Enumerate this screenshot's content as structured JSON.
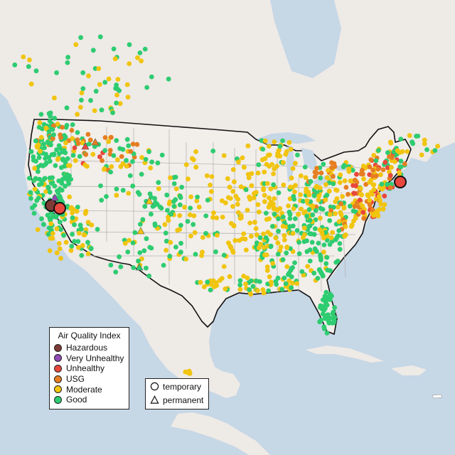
{
  "legend_aqi": {
    "title": "Air Quality Index",
    "items": [
      {
        "label": "Hazardous",
        "color": "#7e3b35"
      },
      {
        "label": "Very Unhealthy",
        "color": "#8f4bb4"
      },
      {
        "label": "Unhealthy",
        "color": "#e8473d"
      },
      {
        "label": "USG",
        "color": "#e67e22"
      },
      {
        "label": "Moderate",
        "color": "#f1c40f"
      },
      {
        "label": "Good",
        "color": "#2ecc71"
      }
    ]
  },
  "legend_type": {
    "items": [
      {
        "label": "temporary",
        "symbol": "circle"
      },
      {
        "label": "permanent",
        "symbol": "triangle"
      }
    ]
  },
  "colors": {
    "water": "#c6d7e6",
    "land": "#eeeae6",
    "us_land": "#f2eeea",
    "border": "#111111",
    "state_lines": "#b5b5b5",
    "no_data": "#bdbdbd"
  }
}
